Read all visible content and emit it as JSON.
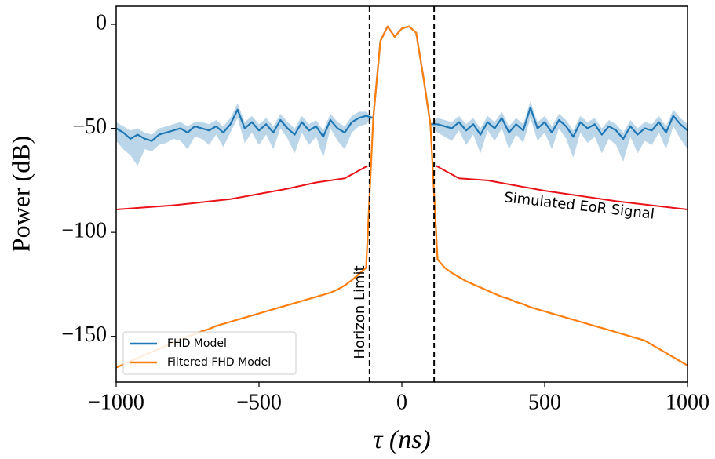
{
  "chart_data": {
    "type": "line",
    "xlabel": "τ (ns)",
    "ylabel": "Power (dB)",
    "xlim": [
      -1000,
      1000
    ],
    "ylim": [
      -172,
      8.7
    ],
    "xticks": [
      {
        "value": -1000,
        "label": "−1000"
      },
      {
        "value": -500,
        "label": "−500"
      },
      0,
      500,
      1000
    ],
    "yticks": [
      0,
      {
        "value": -50,
        "label": "−50"
      },
      {
        "value": -100,
        "label": "−100"
      },
      {
        "value": -150,
        "label": "−150"
      }
    ],
    "legend": "lower left",
    "x": [
      -1000,
      -975,
      -950,
      -925,
      -900,
      -875,
      -850,
      -825,
      -800,
      -775,
      -750,
      -725,
      -700,
      -675,
      -650,
      -625,
      -600,
      -575,
      -550,
      -525,
      -500,
      -475,
      -450,
      -425,
      -400,
      -375,
      -350,
      -325,
      -300,
      -275,
      -250,
      -225,
      -200,
      -175,
      -150,
      -125,
      -100,
      -75,
      -50,
      -25,
      0,
      25,
      50,
      75,
      100,
      125,
      150,
      175,
      200,
      225,
      250,
      275,
      300,
      325,
      350,
      375,
      400,
      425,
      450,
      475,
      500,
      525,
      550,
      575,
      600,
      625,
      650,
      675,
      700,
      725,
      750,
      775,
      800,
      825,
      850,
      875,
      900,
      925,
      950,
      975,
      1000
    ],
    "series": [
      {
        "name": "FHD Model",
        "color": "#1f77b4",
        "values": [
          -50,
          -52,
          -55,
          -53,
          -55,
          -56,
          -53,
          -52,
          -51,
          -50,
          -52,
          -49,
          -50,
          -51,
          -49,
          -52,
          -48,
          -41,
          -50,
          -47,
          -51,
          -48,
          -52,
          -46,
          -50,
          -53,
          -47,
          -51,
          -49,
          -54,
          -46,
          -50,
          -52,
          -47,
          -45,
          -44,
          -45,
          -8,
          -1,
          -6,
          -2,
          -1,
          -4,
          -25,
          -48,
          -48,
          -49,
          -50,
          -47,
          -51,
          -48,
          -53,
          -47,
          -50,
          -45,
          -52,
          -48,
          -51,
          -40,
          -50,
          -47,
          -52,
          -46,
          -49,
          -54,
          -47,
          -50,
          -48,
          -53,
          -49,
          -51,
          -55,
          -49,
          -53,
          -50,
          -51,
          -47,
          -52,
          -44,
          -48,
          -51
        ],
        "upper": [
          -47,
          -49,
          -51,
          -50,
          -52,
          -53,
          -50,
          -49,
          -48,
          -47,
          -49,
          -47,
          -47,
          -48,
          -46,
          -49,
          -45,
          -38,
          -47,
          -44,
          -48,
          -45,
          -49,
          -43,
          -47,
          -50,
          -44,
          -48,
          -46,
          -51,
          -43,
          -47,
          -49,
          -44,
          -42,
          -42,
          -45,
          -8,
          -1,
          -6,
          -2,
          -1,
          -4,
          -25,
          -48,
          -45,
          -46,
          -47,
          -44,
          -48,
          -45,
          -50,
          -44,
          -47,
          -42,
          -49,
          -45,
          -48,
          -37,
          -47,
          -44,
          -49,
          -43,
          -46,
          -51,
          -44,
          -47,
          -45,
          -50,
          -46,
          -48,
          -52,
          -46,
          -50,
          -47,
          -48,
          -44,
          -49,
          -41,
          -45,
          -48
        ],
        "lower": [
          -56,
          -60,
          -63,
          -68,
          -60,
          -61,
          -58,
          -57,
          -55,
          -56,
          -60,
          -54,
          -55,
          -58,
          -53,
          -59,
          -52,
          -45,
          -57,
          -52,
          -58,
          -53,
          -60,
          -50,
          -55,
          -62,
          -52,
          -58,
          -54,
          -64,
          -50,
          -56,
          -60,
          -52,
          -49,
          -48,
          -45,
          -8,
          -1,
          -6,
          -2,
          -1,
          -4,
          -25,
          -48,
          -52,
          -54,
          -56,
          -51,
          -58,
          -53,
          -62,
          -51,
          -56,
          -50,
          -60,
          -53,
          -57,
          -45,
          -56,
          -52,
          -60,
          -50,
          -55,
          -64,
          -52,
          -57,
          -54,
          -62,
          -55,
          -58,
          -66,
          -54,
          -62,
          -56,
          -58,
          -52,
          -60,
          -49,
          -55,
          -60
        ]
      },
      {
        "name": "Filtered FHD Model",
        "color": "#ff7f0e",
        "values": [
          -165,
          -163.5,
          -162,
          -160.5,
          -159,
          -157.5,
          -156,
          -154.5,
          -153,
          -151.5,
          -150,
          -149,
          -147.5,
          -146.5,
          -145,
          -144,
          -143,
          -142,
          -141,
          -140,
          -139,
          -138,
          -137,
          -136,
          -135,
          -134,
          -133,
          -132,
          -131,
          -130,
          -129,
          -127.5,
          -125.5,
          -123,
          -120,
          -117,
          -45,
          -8,
          -1,
          -6,
          -2,
          -1,
          -4,
          -25,
          -48,
          -113,
          -117,
          -119.5,
          -121.5,
          -123.5,
          -125,
          -126.5,
          -128,
          -129.5,
          -131,
          -132,
          -133.5,
          -134.5,
          -136,
          -137,
          -138,
          -139,
          -140,
          -141,
          -142,
          -143,
          -144,
          -145,
          -146,
          -147,
          -148,
          -149,
          -150,
          -151,
          -152,
          -154,
          -156,
          -158,
          -160,
          -162,
          -164
        ]
      }
    ],
    "eor_signal": {
      "label": "Simulated EoR Signal",
      "color": "#e8141a",
      "x": [
        -1000,
        -800,
        -600,
        -400,
        -300,
        -200,
        -120,
        0,
        120,
        200,
        300,
        500,
        750,
        1000
      ],
      "values": [
        -89,
        -87,
        -84,
        -79,
        -76,
        -74,
        -68,
        null,
        -68,
        -74,
        -75,
        -80,
        -85,
        -89
      ]
    },
    "vlines": [
      -113,
      113
    ],
    "vline_label": "Horizon Limit"
  }
}
